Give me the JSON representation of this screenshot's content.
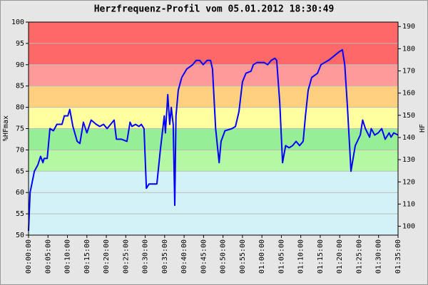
{
  "chart_data": {
    "type": "line",
    "title": "Herzfrequenz-Profil vom 05.01.2012 18:30:49",
    "y_label": "%HFmax",
    "y2_label": "HF",
    "x": [
      0,
      0.4,
      1.5,
      2.4,
      3.1,
      3.7,
      4,
      4.8,
      5.5,
      6.4,
      7.3,
      8.6,
      9.2,
      10.1,
      10.6,
      11.4,
      12.5,
      13.2,
      14.1,
      15,
      16.1,
      17.4,
      18.3,
      19.3,
      20.2,
      21.1,
      22,
      22.6,
      23.9,
      25.3,
      26.1,
      26.6,
      27.5,
      28.4,
      29,
      29.7,
      30.3,
      31,
      32,
      33,
      33.9,
      34.9,
      35.2,
      35.8,
      36.3,
      36.7,
      37.2,
      37.6,
      37.9,
      38.5,
      39.4,
      40.7,
      42.2,
      43.1,
      44,
      44.9,
      45.9,
      46.8,
      47.3,
      48.1,
      49,
      49.5,
      50.5,
      52.3,
      53.2,
      54.1,
      55,
      55.9,
      57.2,
      57.8,
      58.7,
      60.6,
      61.5,
      62.4,
      63.3,
      63.8,
      64.6,
      65.3,
      66.1,
      67,
      67.9,
      68.8,
      69.7,
      70.6,
      71.2,
      71.9,
      72.8,
      74.3,
      75.2,
      77.1,
      78.5,
      79.8,
      80.7,
      81.3,
      82,
      82.6,
      82.9,
      84,
      85.3,
      85.9,
      86.6,
      87.7,
      88.1,
      89,
      89.9,
      90.8,
      91.7,
      92.7,
      93.2,
      93.9,
      95
    ],
    "series": [
      {
        "name": "HF",
        "color": "#0000ff",
        "values": [
          51,
          60,
          65,
          66.5,
          68.5,
          67,
          68,
          68,
          75,
          74.5,
          76,
          76,
          78,
          78,
          79.5,
          75.5,
          72,
          71.5,
          76.5,
          74,
          77,
          76,
          75.5,
          76,
          75,
          76,
          77,
          72.5,
          72.5,
          72,
          76.5,
          75.5,
          76,
          75.5,
          76,
          75,
          61,
          62,
          62,
          62,
          70,
          78,
          74,
          83,
          76,
          80,
          76,
          57,
          78,
          84,
          87,
          89,
          90,
          91,
          91,
          90,
          91,
          91,
          89,
          75,
          67,
          72,
          74.5,
          75,
          75.5,
          79,
          86,
          88,
          88.5,
          90,
          90.5,
          90.5,
          90,
          91,
          91.5,
          91,
          81,
          67,
          71,
          70.5,
          71,
          72,
          71,
          72,
          78,
          84,
          87,
          88,
          90,
          91,
          92,
          93,
          93.5,
          90,
          80,
          70,
          65,
          71,
          73.5,
          77,
          75,
          73,
          75,
          73.5,
          74,
          75,
          72.5,
          74,
          73,
          74,
          73.5
        ]
      }
    ],
    "xlim": [
      0,
      95
    ],
    "xticks": [
      {
        "value": 0,
        "label": "00:00:00"
      },
      {
        "value": 5,
        "label": "00:05:00"
      },
      {
        "value": 10,
        "label": "00:10:00"
      },
      {
        "value": 15,
        "label": "00:15:00"
      },
      {
        "value": 20,
        "label": "00:20:00"
      },
      {
        "value": 25,
        "label": "00:25:00"
      },
      {
        "value": 30,
        "label": "00:30:00"
      },
      {
        "value": 35,
        "label": "00:35:00"
      },
      {
        "value": 40,
        "label": "00:40:00"
      },
      {
        "value": 45,
        "label": "00:45:00"
      },
      {
        "value": 50,
        "label": "00:50:00"
      },
      {
        "value": 55,
        "label": "00:55:00"
      },
      {
        "value": 60,
        "label": "01:00:00"
      },
      {
        "value": 65,
        "label": "01:05:00"
      },
      {
        "value": 70,
        "label": "01:10:00"
      },
      {
        "value": 75,
        "label": "01:15:00"
      },
      {
        "value": 80,
        "label": "01:20:00"
      },
      {
        "value": 85,
        "label": "01:25:00"
      },
      {
        "value": 90,
        "label": "01:30:00"
      },
      {
        "value": 95,
        "label": "01:35:00"
      }
    ],
    "ylim": [
      50,
      100
    ],
    "yticks": [
      50,
      55,
      60,
      65,
      70,
      75,
      80,
      85,
      90,
      95,
      100
    ],
    "y2lim": [
      96,
      192
    ],
    "y2ticks": [
      100,
      110,
      120,
      130,
      140,
      150,
      160,
      170,
      180,
      190
    ],
    "grid": true,
    "zones": [
      {
        "from": 50,
        "to": 65,
        "color": "#d2f2f8"
      },
      {
        "from": 65,
        "to": 70,
        "color": "#b4f8a4"
      },
      {
        "from": 70,
        "to": 75,
        "color": "#96ee96"
      },
      {
        "from": 75,
        "to": 80,
        "color": "#ffffa0"
      },
      {
        "from": 80,
        "to": 85,
        "color": "#ffd080"
      },
      {
        "from": 85,
        "to": 90,
        "color": "#ff9a9a"
      },
      {
        "from": 90,
        "to": 100,
        "color": "#ff6868"
      }
    ]
  }
}
